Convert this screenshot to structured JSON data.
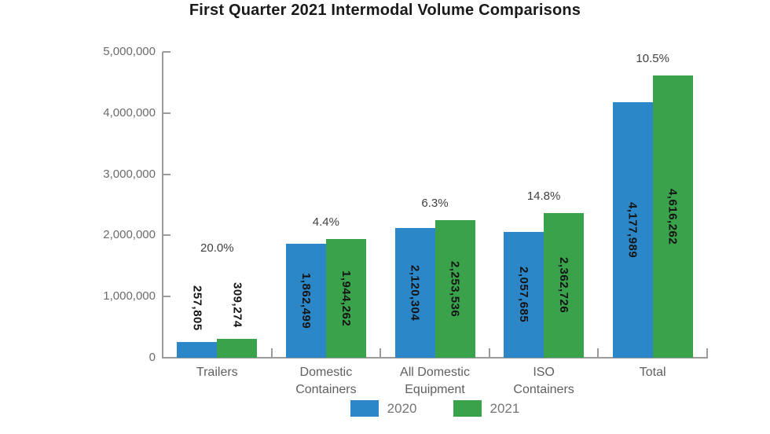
{
  "colors": {
    "series_2020": "#2b87c8",
    "series_2021": "#39a24b",
    "axis": "#9b9b9b",
    "y_tick_label": "#6b6b6b",
    "category_label": "#5f5f5f",
    "percent_label": "#3f3f3f",
    "value_label": "#141414",
    "legend_label": "#757575",
    "title": "#1a1a1a"
  },
  "legend": [
    {
      "label": "2020",
      "color_key": "series_2020"
    },
    {
      "label": "2021",
      "color_key": "series_2021"
    }
  ],
  "chart_data": {
    "type": "bar",
    "title": "First Quarter 2021 Intermodal Volume Comparisons",
    "categories": [
      "Trailers",
      "Domestic Containers",
      "All Domestic Equipment",
      "ISO Containers",
      "Total"
    ],
    "category_label_lines": [
      [
        "Trailers"
      ],
      [
        "Domestic",
        "Containers"
      ],
      [
        "All Domestic",
        "Equipment"
      ],
      [
        "ISO",
        "Containers"
      ],
      [
        "Total"
      ]
    ],
    "series": [
      {
        "name": "2020",
        "color_key": "series_2020",
        "values": [
          257805,
          1862499,
          2120304,
          2057685,
          4177989
        ],
        "labels": [
          "257,805",
          "1,862,499",
          "2,120,304",
          "2,057,685",
          "4,177,989"
        ]
      },
      {
        "name": "2021",
        "color_key": "series_2021",
        "values": [
          309274,
          1944262,
          2253536,
          2362726,
          4616262
        ],
        "labels": [
          "309,274",
          "1,944,262",
          "2,253,536",
          "2,362,726",
          "4,616,262"
        ]
      }
    ],
    "percent_change_labels": [
      "20.0%",
      "4.4%",
      "6.3%",
      "14.8%",
      "10.5%"
    ],
    "value_labels_inside": [
      false,
      true,
      true,
      true,
      true
    ],
    "y_ticks": [
      {
        "value": 0,
        "label": "0"
      },
      {
        "value": 1000000,
        "label": "1,000,000"
      },
      {
        "value": 2000000,
        "label": "2,000,000"
      },
      {
        "value": 3000000,
        "label": "3,000,000"
      },
      {
        "value": 4000000,
        "label": "4,000,000"
      },
      {
        "value": 5000000,
        "label": "5,000,000"
      }
    ],
    "ylim": [
      0,
      5000000
    ],
    "xlabel": "",
    "ylabel": "",
    "grid": false,
    "legend_position": "bottom"
  }
}
